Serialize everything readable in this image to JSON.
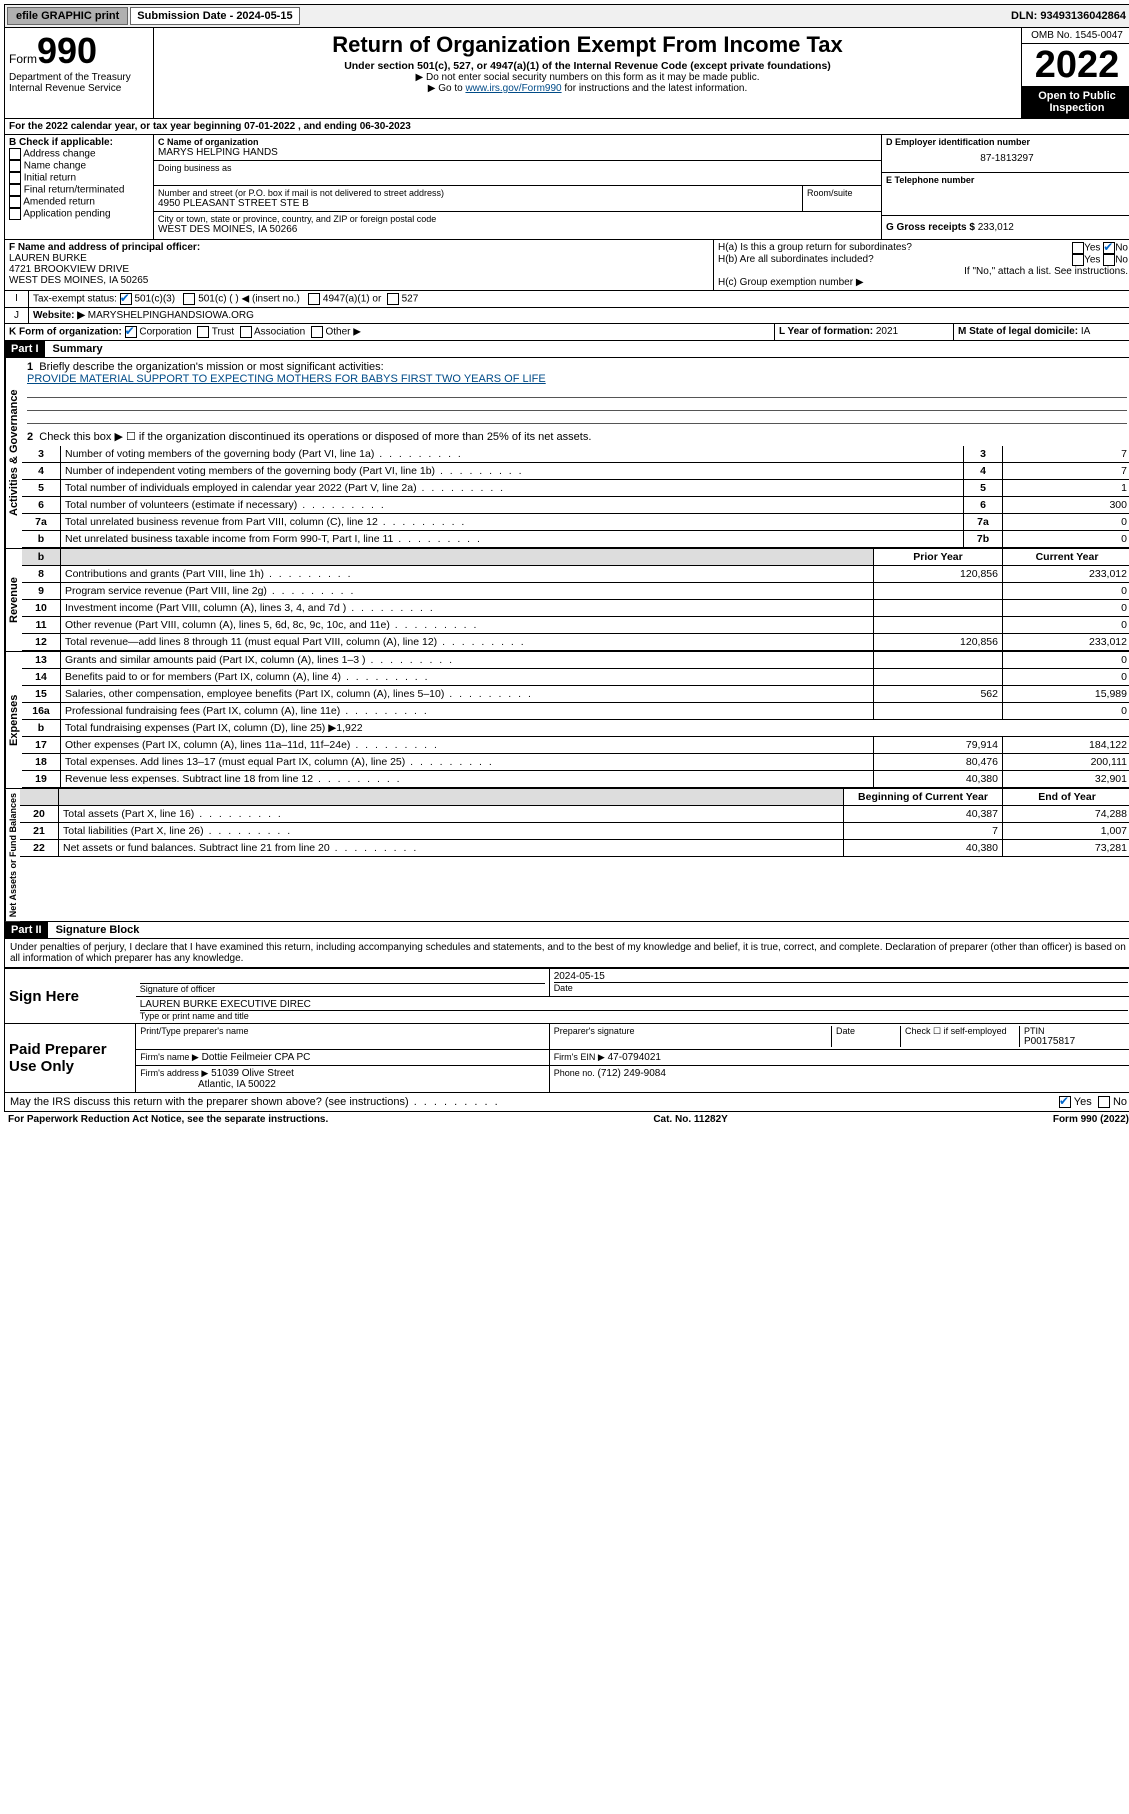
{
  "topbar": {
    "efile": "efile GRAPHIC print",
    "sub_date_label": "Submission Date - 2024-05-15",
    "dln": "DLN: 93493136042864"
  },
  "header": {
    "form_label": "Form",
    "form_num": "990",
    "dept": "Department of the Treasury",
    "irs": "Internal Revenue Service",
    "title": "Return of Organization Exempt From Income Tax",
    "sub1": "Under section 501(c), 527, or 4947(a)(1) of the Internal Revenue Code (except private foundations)",
    "sub2": "▶ Do not enter social security numbers on this form as it may be made public.",
    "sub3_pre": "▶ Go to ",
    "sub3_link": "www.irs.gov/Form990",
    "sub3_post": " for instructions and the latest information.",
    "omb": "OMB No. 1545-0047",
    "year": "2022",
    "open": "Open to Public Inspection"
  },
  "lineA": "For the 2022 calendar year, or tax year beginning 07-01-2022   , and ending 06-30-2023",
  "boxB": {
    "label": "B Check if applicable:",
    "addr": "Address change",
    "name": "Name change",
    "init": "Initial return",
    "final": "Final return/terminated",
    "amend": "Amended return",
    "app": "Application pending"
  },
  "boxC": {
    "label": "C Name of organization",
    "name": "MARYS HELPING HANDS",
    "dba": "Doing business as",
    "addr_label": "Number and street (or P.O. box if mail is not delivered to street address)",
    "room": "Room/suite",
    "addr": "4950 PLEASANT STREET STE B",
    "city_label": "City or town, state or province, country, and ZIP or foreign postal code",
    "city": "WEST DES MOINES, IA  50266"
  },
  "boxD": {
    "label": "D Employer identification number",
    "ein": "87-1813297"
  },
  "boxE": {
    "label": "E Telephone number",
    "phone": ""
  },
  "boxG": {
    "label": "G Gross receipts $",
    "val": "233,012"
  },
  "boxF": {
    "label": "F Name and address of principal officer:",
    "name": "LAUREN BURKE",
    "addr1": "4721 BROOKVIEW DRIVE",
    "addr2": "WEST DES MOINES, IA  50265"
  },
  "boxH": {
    "a": "H(a)  Is this a group return for subordinates?",
    "b": "H(b)  Are all subordinates included?",
    "b_note": "If \"No,\" attach a list. See instructions.",
    "c": "H(c)  Group exemption number ▶",
    "yes": "Yes",
    "no": "No"
  },
  "boxI": {
    "label": "Tax-exempt status:",
    "c3": "501(c)(3)",
    "c": "501(c) (  ) ◀ (insert no.)",
    "a1": "4947(a)(1) or",
    "s527": "527"
  },
  "boxJ": {
    "label": "Website: ▶",
    "val": "MARYSHELPINGHANDSIOWA.ORG"
  },
  "boxK": {
    "label": "K Form of organization:",
    "corp": "Corporation",
    "trust": "Trust",
    "assoc": "Association",
    "other": "Other ▶"
  },
  "boxL": {
    "label": "L Year of formation:",
    "val": "2021"
  },
  "boxM": {
    "label": "M State of legal domicile:",
    "val": "IA"
  },
  "part1": {
    "header": "Part I",
    "title": "Summary",
    "vert_ag": "Activities & Governance",
    "vert_rev": "Revenue",
    "vert_exp": "Expenses",
    "vert_na": "Net Assets or Fund Balances",
    "l1_label": "Briefly describe the organization's mission or most significant activities:",
    "l1_text": "PROVIDE MATERIAL SUPPORT TO EXPECTING MOTHERS FOR BABYS FIRST TWO YEARS OF LIFE",
    "l2": "Check this box ▶ ☐  if the organization discontinued its operations or disposed of more than 25% of its net assets.",
    "rows_ag": [
      {
        "n": "3",
        "label": "Number of voting members of the governing body (Part VI, line 1a)",
        "box": "3",
        "val": "7"
      },
      {
        "n": "4",
        "label": "Number of independent voting members of the governing body (Part VI, line 1b)",
        "box": "4",
        "val": "7"
      },
      {
        "n": "5",
        "label": "Total number of individuals employed in calendar year 2022 (Part V, line 2a)",
        "box": "5",
        "val": "1"
      },
      {
        "n": "6",
        "label": "Total number of volunteers (estimate if necessary)",
        "box": "6",
        "val": "300"
      },
      {
        "n": "7a",
        "label": "Total unrelated business revenue from Part VIII, column (C), line 12",
        "box": "7a",
        "val": "0"
      },
      {
        "n": "b",
        "label": "Net unrelated business taxable income from Form 990-T, Part I, line 11",
        "box": "7b",
        "val": "0"
      }
    ],
    "hdr_prior": "Prior Year",
    "hdr_curr": "Current Year",
    "rows_rev": [
      {
        "n": "8",
        "label": "Contributions and grants (Part VIII, line 1h)",
        "prior": "120,856",
        "curr": "233,012"
      },
      {
        "n": "9",
        "label": "Program service revenue (Part VIII, line 2g)",
        "prior": "",
        "curr": "0"
      },
      {
        "n": "10",
        "label": "Investment income (Part VIII, column (A), lines 3, 4, and 7d )",
        "prior": "",
        "curr": "0"
      },
      {
        "n": "11",
        "label": "Other revenue (Part VIII, column (A), lines 5, 6d, 8c, 9c, 10c, and 11e)",
        "prior": "",
        "curr": "0"
      },
      {
        "n": "12",
        "label": "Total revenue—add lines 8 through 11 (must equal Part VIII, column (A), line 12)",
        "prior": "120,856",
        "curr": "233,012"
      }
    ],
    "rows_exp": [
      {
        "n": "13",
        "label": "Grants and similar amounts paid (Part IX, column (A), lines 1–3 )",
        "prior": "",
        "curr": "0"
      },
      {
        "n": "14",
        "label": "Benefits paid to or for members (Part IX, column (A), line 4)",
        "prior": "",
        "curr": "0"
      },
      {
        "n": "15",
        "label": "Salaries, other compensation, employee benefits (Part IX, column (A), lines 5–10)",
        "prior": "562",
        "curr": "15,989"
      },
      {
        "n": "16a",
        "label": "Professional fundraising fees (Part IX, column (A), line 11e)",
        "prior": "",
        "curr": "0"
      },
      {
        "n": "b",
        "label": "Total fundraising expenses (Part IX, column (D), line 25) ▶1,922",
        "prior": null,
        "curr": null
      },
      {
        "n": "17",
        "label": "Other expenses (Part IX, column (A), lines 11a–11d, 11f–24e)",
        "prior": "79,914",
        "curr": "184,122"
      },
      {
        "n": "18",
        "label": "Total expenses. Add lines 13–17 (must equal Part IX, column (A), line 25)",
        "prior": "80,476",
        "curr": "200,111"
      },
      {
        "n": "19",
        "label": "Revenue less expenses. Subtract line 18 from line 12",
        "prior": "40,380",
        "curr": "32,901"
      }
    ],
    "hdr_begin": "Beginning of Current Year",
    "hdr_end": "End of Year",
    "rows_na": [
      {
        "n": "20",
        "label": "Total assets (Part X, line 16)",
        "prior": "40,387",
        "curr": "74,288"
      },
      {
        "n": "21",
        "label": "Total liabilities (Part X, line 26)",
        "prior": "7",
        "curr": "1,007"
      },
      {
        "n": "22",
        "label": "Net assets or fund balances. Subtract line 21 from line 20",
        "prior": "40,380",
        "curr": "73,281"
      }
    ]
  },
  "part2": {
    "header": "Part II",
    "title": "Signature Block",
    "decl": "Under penalties of perjury, I declare that I have examined this return, including accompanying schedules and statements, and to the best of my knowledge and belief, it is true, correct, and complete. Declaration of preparer (other than officer) is based on all information of which preparer has any knowledge.",
    "sign_here": "Sign Here",
    "sig_officer": "Signature of officer",
    "sig_date": "2024-05-15",
    "date_label": "Date",
    "officer_name": "LAUREN BURKE  EXECUTIVE DIREC",
    "type_name": "Type or print name and title",
    "paid": "Paid Preparer Use Only",
    "prep_name_label": "Print/Type preparer's name",
    "prep_sig_label": "Preparer's signature",
    "prep_date_label": "Date",
    "check_if": "Check ☐ if self-employed",
    "ptin_label": "PTIN",
    "ptin": "P00175817",
    "firm_name_label": "Firm's name    ▶",
    "firm_name": "Dottie Feilmeier CPA PC",
    "firm_ein_label": "Firm's EIN ▶",
    "firm_ein": "47-0794021",
    "firm_addr_label": "Firm's address ▶",
    "firm_addr1": "51039 Olive Street",
    "firm_addr2": "Atlantic, IA  50022",
    "phone_label": "Phone no.",
    "phone": "(712) 249-9084",
    "discuss": "May the IRS discuss this return with the preparer shown above? (see instructions)",
    "yes": "Yes",
    "no": "No"
  },
  "footer": {
    "left": "For Paperwork Reduction Act Notice, see the separate instructions.",
    "mid": "Cat. No. 11282Y",
    "right": "Form 990 (2022)"
  }
}
